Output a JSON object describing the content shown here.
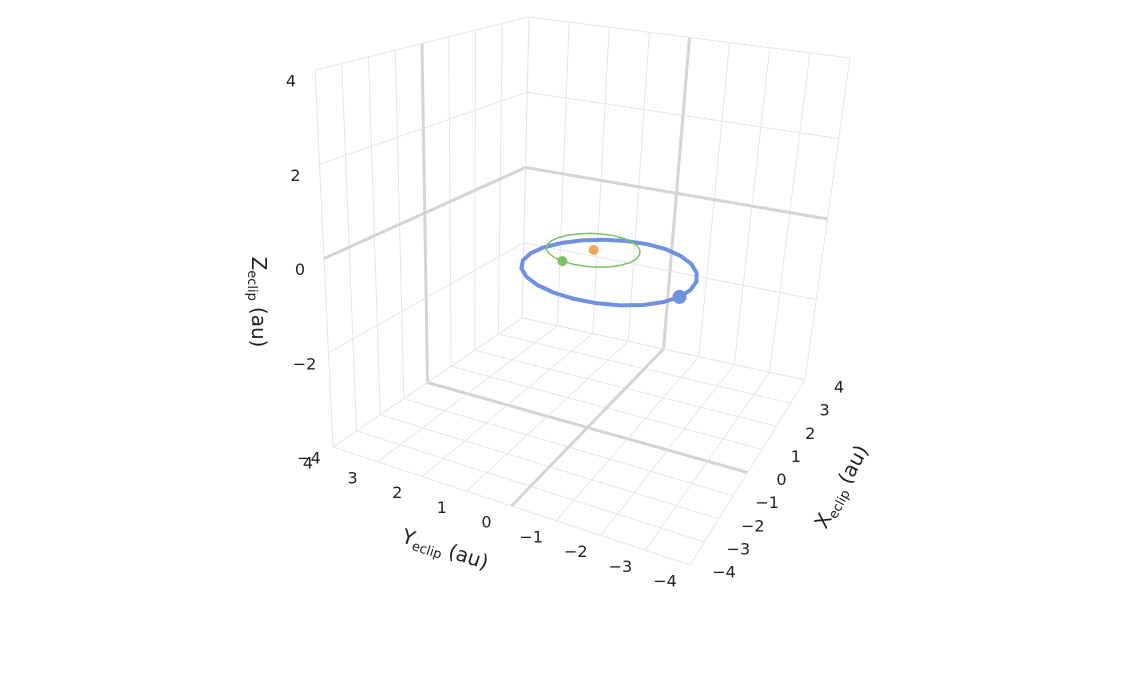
{
  "chart_data": {
    "type": "scatter3d",
    "xaxis_title": {
      "main": "X",
      "sub": "eclip",
      "unit": "(au)"
    },
    "yaxis_title": {
      "main": "Y",
      "sub": "eclip",
      "unit": "(au)"
    },
    "zaxis_title": {
      "main": "Z",
      "sub": "eclip",
      "unit": "(au)"
    },
    "xlim": [
      -4,
      4
    ],
    "ylim": [
      -4,
      4
    ],
    "zlim": [
      -4,
      4
    ],
    "xticks": [
      {
        "value": -4,
        "label": "−4"
      },
      {
        "value": -3,
        "label": "−3"
      },
      {
        "value": -2,
        "label": "−2"
      },
      {
        "value": -1,
        "label": "−1"
      },
      0,
      1,
      2,
      3,
      4
    ],
    "yticks": [
      {
        "value": -4,
        "label": "−4"
      },
      {
        "value": -3,
        "label": "−3"
      },
      {
        "value": -2,
        "label": "−2"
      },
      {
        "value": -1,
        "label": "−1"
      },
      0,
      1,
      2,
      3,
      4
    ],
    "zticks": [
      {
        "value": -4,
        "label": "−4"
      },
      {
        "value": -2,
        "label": "−2"
      },
      0,
      2,
      4
    ],
    "grid": true,
    "series": [
      {
        "mode": "lines",
        "color": "#7091e0",
        "x": [
          0.92,
          0.857,
          0.672,
          0.378,
          -0.005,
          -0.451,
          -0.93,
          -1.409,
          -1.855,
          -2.238,
          -2.532,
          -2.717,
          -2.78,
          -2.717,
          -2.532,
          -2.238,
          -1.855,
          -1.409,
          -0.93,
          -0.451,
          -0.005,
          0.378,
          0.672,
          0.857,
          0.92
        ],
        "y": [
          -0.84,
          -0.361,
          0.085,
          0.468,
          0.762,
          0.947,
          1.01,
          0.947,
          0.762,
          0.468,
          0.085,
          -0.361,
          -0.84,
          -1.319,
          -1.765,
          -2.148,
          -2.442,
          -2.627,
          -2.69,
          -2.627,
          -2.442,
          -2.148,
          -1.765,
          -1.319,
          -0.84
        ],
        "z": [
          0,
          0,
          0,
          0,
          0,
          0,
          0,
          0,
          0,
          0,
          0,
          0,
          0,
          0,
          0,
          0,
          0,
          0,
          0,
          0,
          0,
          0,
          0,
          0,
          0
        ]
      },
      {
        "mode": "lines",
        "color": "#7cc360",
        "x": [
          1,
          0.966,
          0.866,
          0.707,
          0.5,
          0.259,
          0,
          -0.259,
          -0.5,
          -0.707,
          -0.866,
          -0.966,
          -1,
          -0.966,
          -0.866,
          -0.707,
          -0.5,
          -0.259,
          0,
          0.259,
          0.5,
          0.707,
          0.866,
          0.966,
          1
        ],
        "y": [
          0,
          0.259,
          0.5,
          0.707,
          0.866,
          0.966,
          1,
          0.966,
          0.866,
          0.707,
          0.5,
          0.259,
          0,
          -0.259,
          -0.5,
          -0.707,
          -0.866,
          -0.966,
          -1,
          -0.966,
          -0.866,
          -0.707,
          -0.5,
          -0.259,
          0
        ],
        "z": [
          0,
          0,
          0,
          0,
          0,
          0,
          0,
          0,
          0,
          0,
          0,
          0,
          0,
          0,
          0,
          0,
          0,
          0,
          0,
          0,
          0,
          0,
          0,
          0,
          0
        ]
      },
      {
        "mode": "markers",
        "color": "#7091e0",
        "x": [
          -1.409
        ],
        "y": [
          -2.627
        ],
        "z": [
          0
        ],
        "size": [
          7
        ]
      },
      {
        "mode": "markers",
        "color": "#7cc360",
        "x": [
          -0.966
        ],
        "y": [
          0.259
        ],
        "z": [
          0
        ],
        "size": [
          5
        ]
      },
      {
        "mode": "markers",
        "color": "#e8a958",
        "x": [
          0
        ],
        "y": [
          0
        ],
        "z": [
          0
        ],
        "size": [
          5
        ]
      }
    ]
  }
}
